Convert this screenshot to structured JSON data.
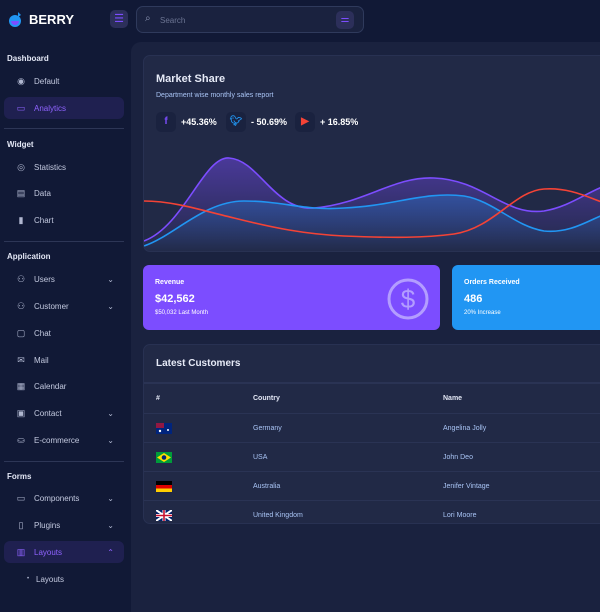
{
  "brand": {
    "name": "BERRY"
  },
  "search": {
    "placeholder": "Search"
  },
  "sidebar": {
    "sections": [
      {
        "title": "Dashboard"
      },
      {
        "title": "Widget"
      },
      {
        "title": "Application"
      },
      {
        "title": "Forms"
      }
    ],
    "items": [
      {
        "label": "Default",
        "icon": "dashboard-icon"
      },
      {
        "label": "Analytics",
        "icon": "device-analytics-icon",
        "selected": true
      },
      {
        "label": "Statistics",
        "icon": "chart-arcs-icon"
      },
      {
        "label": "Data",
        "icon": "clipboard-list-icon"
      },
      {
        "label": "Chart",
        "icon": "chart-bar-icon"
      },
      {
        "label": "Users",
        "icon": "user-check-icon",
        "chevron": true
      },
      {
        "label": "Customer",
        "icon": "users-icon",
        "chevron": true
      },
      {
        "label": "Chat",
        "icon": "messages-icon"
      },
      {
        "label": "Mail",
        "icon": "mail-icon"
      },
      {
        "label": "Calendar",
        "icon": "calendar-icon"
      },
      {
        "label": "Contact",
        "icon": "contact-icon",
        "chevron": true
      },
      {
        "label": "E-commerce",
        "icon": "basket-icon",
        "chevron": true
      },
      {
        "label": "Components",
        "icon": "components-icon",
        "chevron": true
      },
      {
        "label": "Plugins",
        "icon": "plugins-icon",
        "chevron": true
      },
      {
        "label": "Layouts",
        "icon": "layout-icon",
        "chevron": true,
        "selected": true,
        "expanded": true
      }
    ],
    "subitems": [
      {
        "label": "Layouts"
      }
    ]
  },
  "market_share": {
    "title": "Market Share",
    "subtitle": "Department wise monthly sales report",
    "stats": [
      {
        "icon": "facebook-icon",
        "value": "+45.36%",
        "color": "#7c4dff"
      },
      {
        "icon": "twitter-icon",
        "value": "- 50.69%",
        "color": "#2196f3"
      },
      {
        "icon": "youtube-icon",
        "value": "+ 16.85%",
        "color": "#f44336"
      }
    ],
    "series_colors": [
      "#7c4dff",
      "#2196f3",
      "#f44336"
    ]
  },
  "revenue": {
    "label": "Revenue",
    "value": "$42,562",
    "sub": "$50,032 Last Month",
    "color": "#7c4dff"
  },
  "orders": {
    "label": "Orders Received",
    "value": "486",
    "sub": "20% Increase",
    "color": "#2196f3"
  },
  "customers": {
    "title": "Latest Customers",
    "columns": [
      "#",
      "Country",
      "Name"
    ],
    "rows": [
      {
        "flag": "australia-flag",
        "country": "Germany",
        "name": "Angelina Jolly"
      },
      {
        "flag": "brazil-flag",
        "country": "USA",
        "name": "John Deo"
      },
      {
        "flag": "germany-flag",
        "country": "Australia",
        "name": "Jenifer Vintage"
      },
      {
        "flag": "uk-flag",
        "country": "United Kingdom",
        "name": "Lori Moore"
      }
    ]
  }
}
